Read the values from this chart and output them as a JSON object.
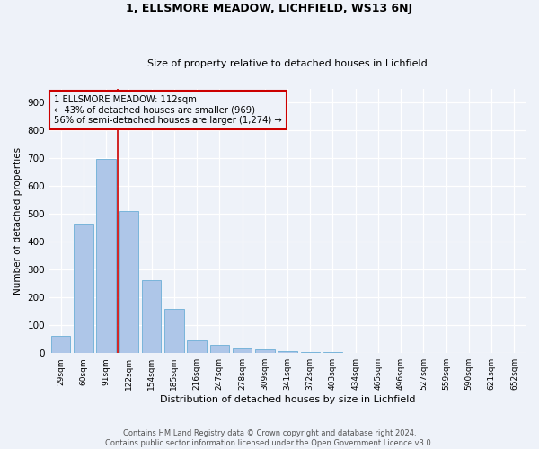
{
  "title_line1": "1, ELLSMORE MEADOW, LICHFIELD, WS13 6NJ",
  "title_line2": "Size of property relative to detached houses in Lichfield",
  "xlabel": "Distribution of detached houses by size in Lichfield",
  "ylabel": "Number of detached properties",
  "bar_labels": [
    "29sqm",
    "60sqm",
    "91sqm",
    "122sqm",
    "154sqm",
    "185sqm",
    "216sqm",
    "247sqm",
    "278sqm",
    "309sqm",
    "341sqm",
    "372sqm",
    "403sqm",
    "434sqm",
    "465sqm",
    "496sqm",
    "527sqm",
    "559sqm",
    "590sqm",
    "621sqm",
    "652sqm"
  ],
  "bar_values": [
    63,
    465,
    697,
    511,
    262,
    160,
    46,
    31,
    17,
    13,
    8,
    4,
    4,
    2,
    1,
    0,
    0,
    0,
    0,
    0,
    0
  ],
  "bar_color": "#aec6e8",
  "bar_edge_color": "#6baed6",
  "vline_color": "#cc0000",
  "vline_x_index": 2.5,
  "annotation_text": "1 ELLSMORE MEADOW: 112sqm\n← 43% of detached houses are smaller (969)\n56% of semi-detached houses are larger (1,274) →",
  "annotation_box_color": "#cc0000",
  "ylim": [
    0,
    950
  ],
  "yticks": [
    0,
    100,
    200,
    300,
    400,
    500,
    600,
    700,
    800,
    900
  ],
  "footer_line1": "Contains HM Land Registry data © Crown copyright and database right 2024.",
  "footer_line2": "Contains public sector information licensed under the Open Government Licence v3.0.",
  "background_color": "#eef2f9",
  "grid_color": "#ffffff"
}
